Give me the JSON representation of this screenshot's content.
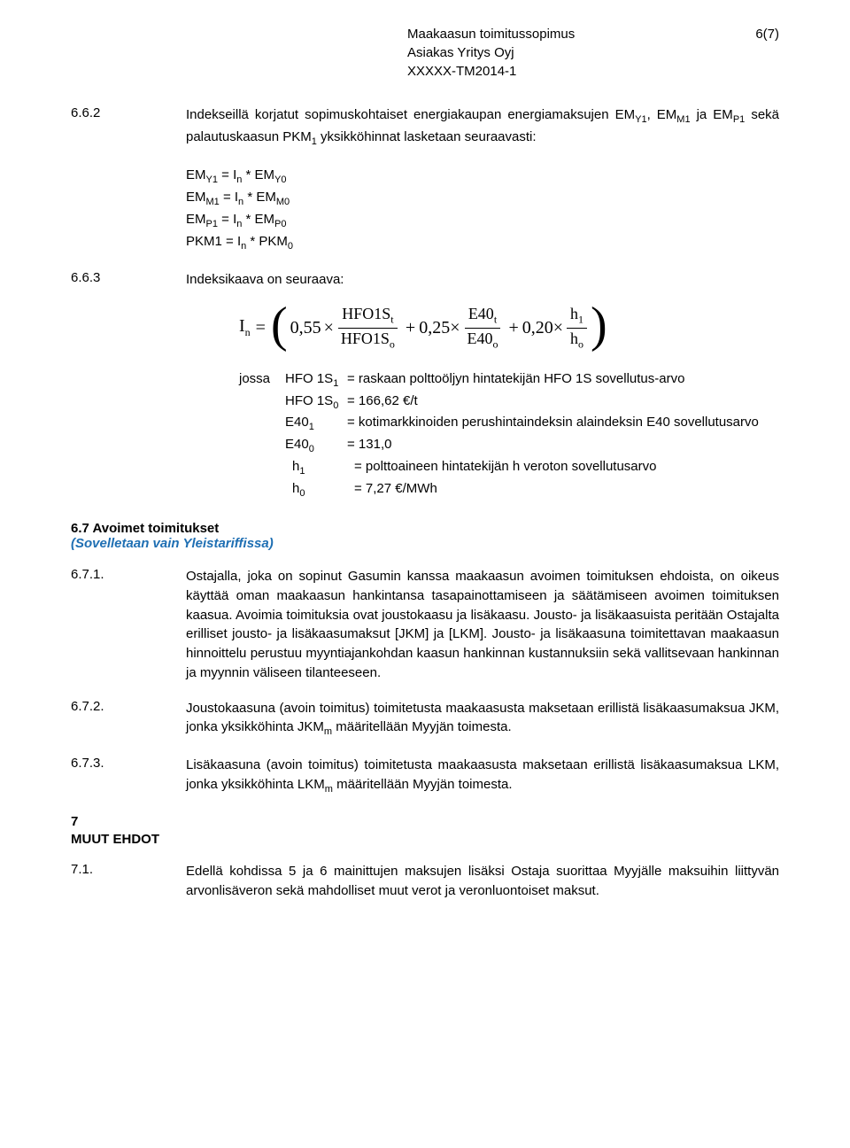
{
  "header": {
    "title": "Maakaasun toimitussopimus",
    "client": "Asiakas Yritys Oyj",
    "ref": "XXXXX-TM2014-1",
    "page": "6(7)"
  },
  "c662": {
    "num": "6.6.2",
    "text": "Indekseillä korjatut sopimuskohtaiset energiakaupan energiamaksujen EM<sub>Y1</sub>, EM<sub>M1</sub> ja EM<sub>P1</sub> sekä palautuskaasun PKM<sub>1</sub> yksikköhinnat lasketaan seuraavasti:",
    "eq1": "EM<sub>Y1</sub> = I<sub>n</sub> * EM<sub>Y0</sub>",
    "eq2": "EM<sub>M1</sub> = I<sub>n</sub> * EM<sub>M0</sub>",
    "eq3": "EM<sub>P1</sub> = I<sub>n</sub> * EM<sub>P0</sub>",
    "eq4": "PKM1 = I<sub>n</sub> * PKM<sub>0</sub>"
  },
  "c663": {
    "num": "6.6.3",
    "text": "Indeksikaava on seuraava:",
    "formula": {
      "lhs_base": "I",
      "lhs_sub": "n",
      "c1": "0,55",
      "f1_num": "HFO1S",
      "f1_num_sub": "t",
      "f1_den": "HFO1S",
      "f1_den_sub": "o",
      "c2": "0,25",
      "f2_num": "E40",
      "f2_num_sub": "t",
      "f2_den": "E40",
      "f2_den_sub": "o",
      "c3": "0,20",
      "f3_num": "h",
      "f3_num_sub": "1",
      "f3_den": "h",
      "f3_den_sub": "o"
    },
    "jossa_lead": "jossa",
    "legend": [
      {
        "sym": "HFO 1S<sub>1</sub>",
        "eq": "= raskaan polttoöljyn hintatekijän HFO 1S sovellutus-arvo",
        "wrap": true
      },
      {
        "sym": "HFO 1S<sub>0</sub>",
        "eq": "= 166,62 €/t"
      },
      {
        "sym": "E40<sub>1</sub>",
        "eq": "= kotimarkkinoiden perushintaindeksin alaindeksin E40 sovellutusarvo"
      },
      {
        "sym": "E40<sub>0</sub>",
        "eq": "= 131,0"
      },
      {
        "sym": "h<sub>1</sub>",
        "eq": "= polttoaineen hintatekijän h veroton sovellutusarvo",
        "indent": true
      },
      {
        "sym": "h<sub>0</sub>",
        "eq": "= 7,27 €/MWh",
        "indent": true
      }
    ]
  },
  "s67": {
    "title": "6.7 Avoimet toimitukset",
    "sub": "(Sovelletaan vain Yleistariffissa)"
  },
  "c671": {
    "num": "6.7.1.",
    "text": "Ostajalla, joka on sopinut Gasumin kanssa maakaasun avoimen toimituksen ehdoista, on oikeus käyttää oman maakaasun hankintansa tasapainottamiseen ja säätämiseen avoimen toimituksen kaasua. Avoimia toimituksia ovat joustokaasu ja lisäkaasu. Jousto- ja lisäkaasuista peritään Ostajalta erilliset jousto- ja lisäkaasumaksut [JKM] ja [LKM]. Jousto- ja lisäkaasuna toimitettavan maakaasun hinnoittelu perustuu myyntiajankohdan kaasun hankinnan kustannuksiin sekä vallitsevaan hankinnan ja myynnin väliseen tilanteeseen."
  },
  "c672": {
    "num": "6.7.2.",
    "text": "Joustokaasuna (avoin toimitus) toimitetusta maakaasusta maksetaan erillistä lisäkaasumaksua JKM, jonka yksikköhinta JKM<sub>m</sub> määritellään Myyjän toimesta."
  },
  "c673": {
    "num": "6.7.3.",
    "text": "Lisäkaasuna (avoin toimitus) toimitetusta maakaasusta maksetaan erillistä lisäkaasumaksua LKM, jonka yksikköhinta LKM<sub>m</sub> määritellään Myyjän toimesta."
  },
  "s7": {
    "num": "7",
    "title": "MUUT EHDOT"
  },
  "c71": {
    "num": "7.1.",
    "text": "Edellä kohdissa 5 ja 6 mainittujen maksujen lisäksi Ostaja suorittaa Myyjälle maksuihin liittyvän arvonlisäveron sekä mahdolliset muut verot ja veronluontoiset maksut."
  }
}
